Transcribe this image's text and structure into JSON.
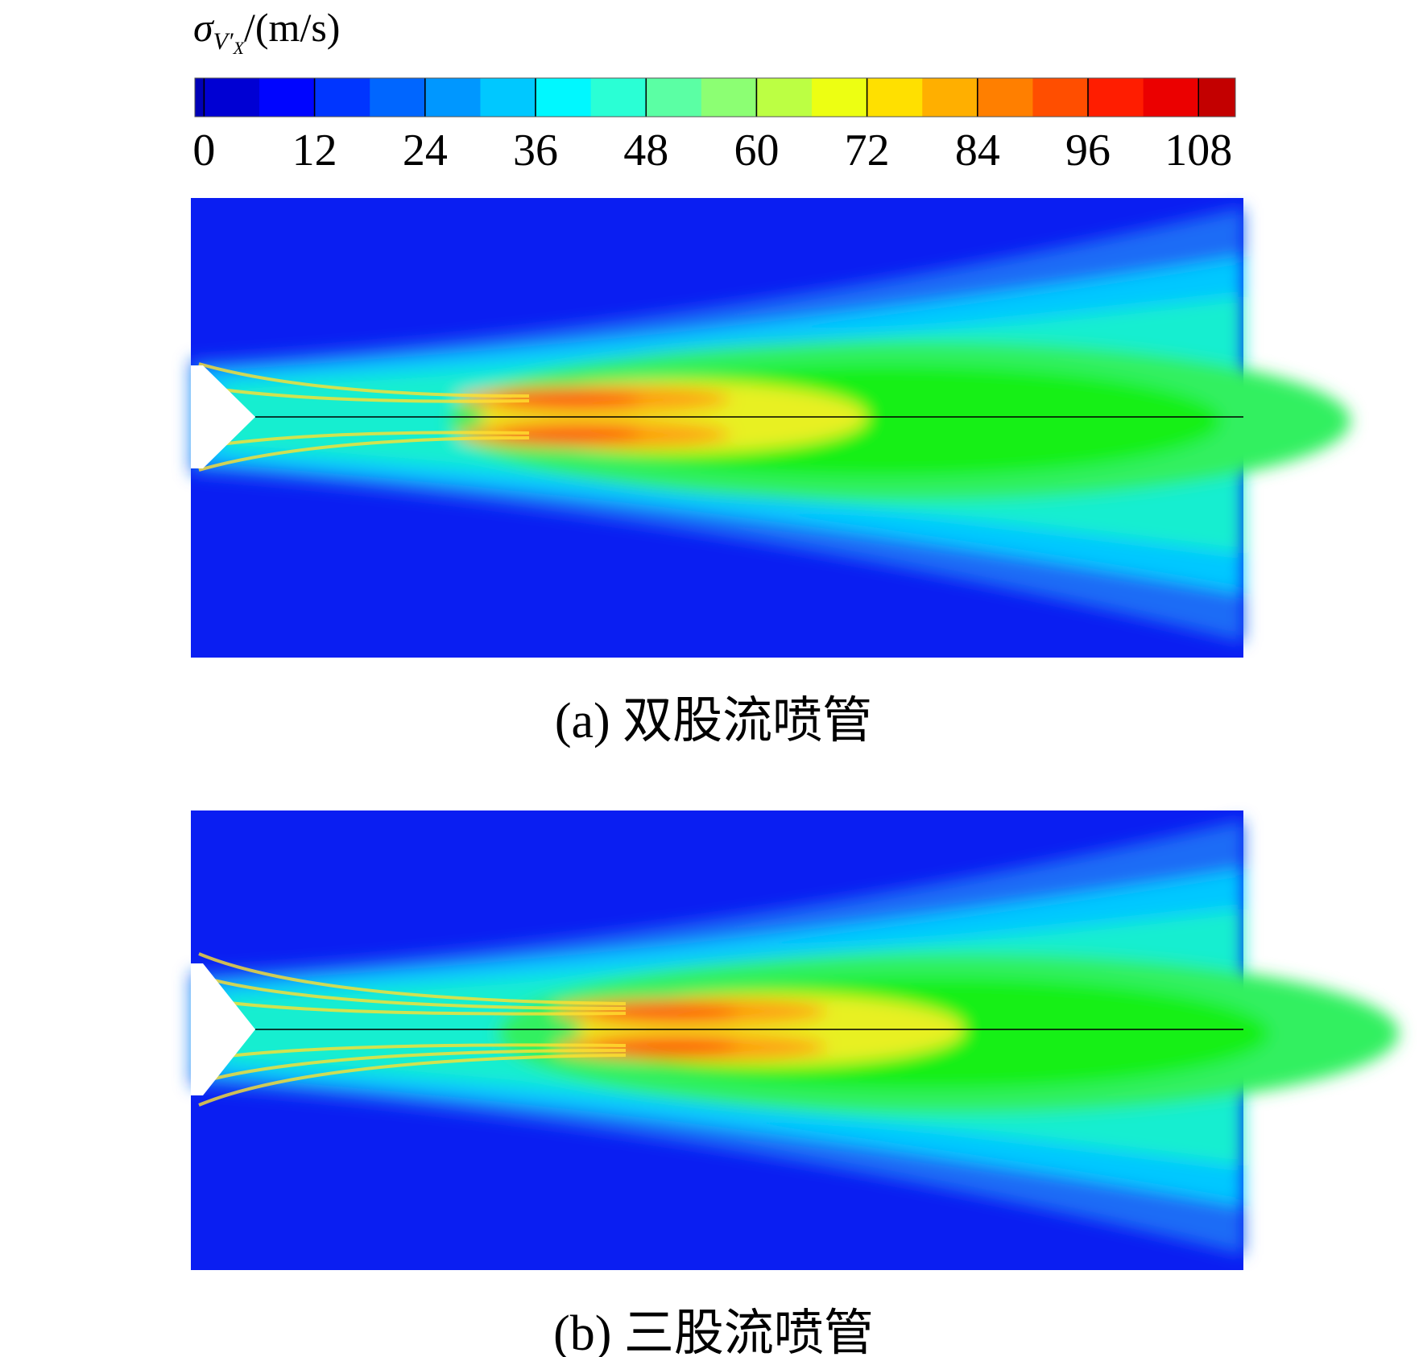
{
  "chart_data": {
    "type": "contour",
    "colorbar_label": {
      "symbol": "σ",
      "sub": "V′",
      "subsub": "X",
      "unit": "/(m/s)"
    },
    "colormap": "jet",
    "clim": [
      -1,
      112
    ],
    "cticks": [
      0,
      12,
      24,
      36,
      48,
      60,
      72,
      84,
      96,
      108
    ],
    "level_step": 6,
    "panels": [
      {
        "caption": "(a) 双股流喷管"
      },
      {
        "caption": "(b) 三股流喷管"
      }
    ]
  }
}
